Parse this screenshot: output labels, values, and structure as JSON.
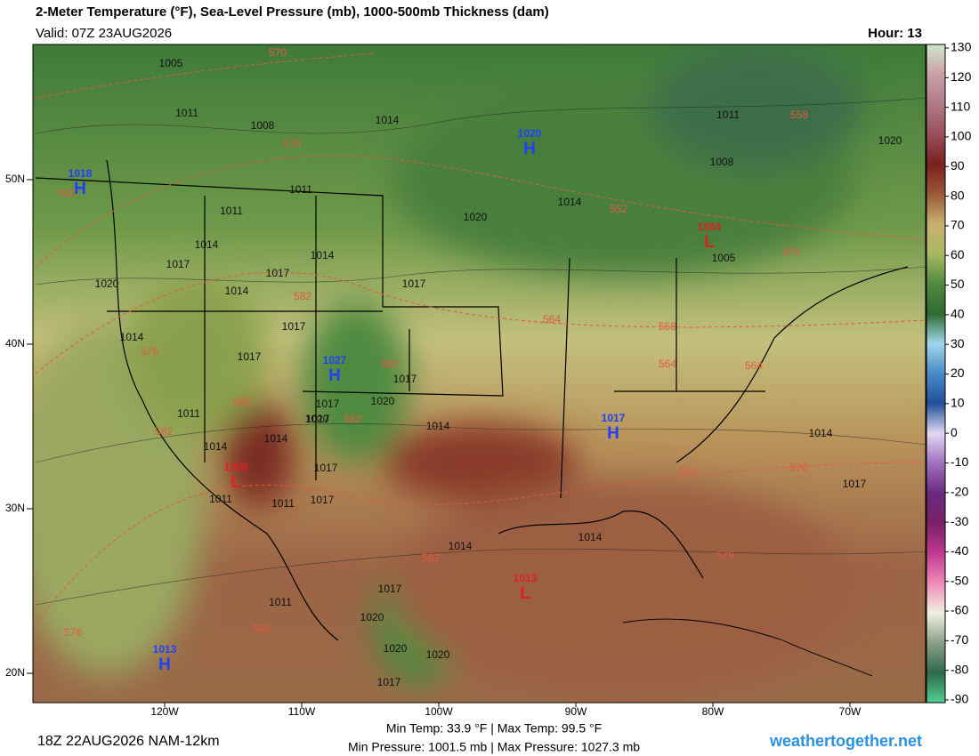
{
  "header": {
    "title": "2-Meter Temperature (°F), Sea-Level Pressure (mb), 1000-500mb Thickness (dam)",
    "valid": "Valid: 07Z 23AUG2026",
    "hour": "Hour: 13"
  },
  "map": {
    "lat_labels": [
      "50N",
      "40N",
      "30N",
      "20N"
    ],
    "lon_labels": [
      "120W",
      "110W",
      "100W",
      "90W",
      "80W",
      "70W"
    ],
    "centers": [
      {
        "letter": "H",
        "value": "1018"
      },
      {
        "letter": "H",
        "value": "1020"
      },
      {
        "letter": "H",
        "value": "1027"
      },
      {
        "letter": "H",
        "value": "1017"
      },
      {
        "letter": "H",
        "value": "1013"
      },
      {
        "letter": "L",
        "value": "1008"
      },
      {
        "letter": "L",
        "value": "1004"
      },
      {
        "letter": "L",
        "value": "1013"
      }
    ],
    "isobar_labels": [
      "1005",
      "1011",
      "1008",
      "1014",
      "1014",
      "1011",
      "1011",
      "1014",
      "1017",
      "1014",
      "1020",
      "1014",
      "1017",
      "1017",
      "1017",
      "1017",
      "1020",
      "1014",
      "1011",
      "1014",
      "1017",
      "1011",
      "1017",
      "1020",
      "1014",
      "1017",
      "1014",
      "1017",
      "1020",
      "1011",
      "1014",
      "1017",
      "1020",
      "1011",
      "1005",
      "1008",
      "1011",
      "1020",
      "1014",
      "1017",
      "1014",
      "1017",
      "1020",
      "1020",
      "1017"
    ],
    "thickness_labels": [
      "570",
      "576",
      "582",
      "576",
      "582",
      "582",
      "582",
      "582",
      "582",
      "576",
      "582",
      "582",
      "552",
      "558",
      "564",
      "564",
      "570",
      "576",
      "576",
      "576",
      "558",
      "564"
    ]
  },
  "colorbar": {
    "ticks": [
      130,
      120,
      110,
      100,
      90,
      80,
      70,
      60,
      50,
      40,
      30,
      20,
      10,
      0,
      -10,
      -20,
      -30,
      -40,
      -50,
      -60,
      -70,
      -80,
      -90
    ],
    "colors": [
      "#cfe8c8",
      "#c9a0a8",
      "#b07a88",
      "#9a4f5a",
      "#7a1f1f",
      "#9a5a38",
      "#c8b070",
      "#a8b860",
      "#4f8a3f",
      "#2f6a33",
      "#9fd8e8",
      "#4a8ac8",
      "#1f4f9a",
      "#e0d8f0",
      "#a070c0",
      "#6a2a80",
      "#7a2068",
      "#c03a90",
      "#f08ab8",
      "#f0f0e0",
      "#8aa088",
      "#2f6a4a",
      "#50d090"
    ]
  },
  "footer": {
    "run": "18Z 22AUG2026 NAM-12km",
    "temps": "Min Temp:  33.9 °F | Max Temp:  99.5 °F",
    "pressures": "Min Pressure: 1001.5 mb | Max Pressure: 1027.3 mb",
    "site": "weathertogether.net"
  }
}
